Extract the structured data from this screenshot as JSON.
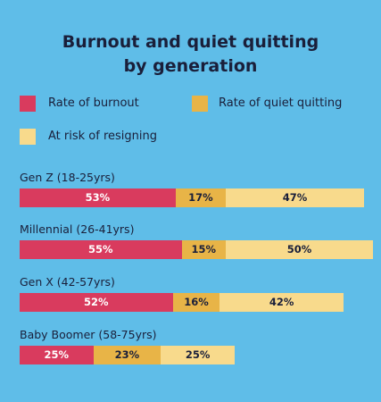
{
  "chart_data": {
    "type": "bar",
    "orientation": "horizontal",
    "stacked": true,
    "title": "Burnout and quiet quitting by generation",
    "title_lines": [
      "Burnout and quiet quitting",
      "by generation"
    ],
    "categories": [
      "Gen Z (18-25yrs)",
      "Millennial (26-41yrs)",
      "Gen X (42-57yrs)",
      "Baby Boomer (58-75yrs)"
    ],
    "series": [
      {
        "name": "Rate of burnout",
        "values": [
          53,
          55,
          52,
          25
        ],
        "color": "#d93b5e",
        "text_color": "#ffffff"
      },
      {
        "name": "Rate of quiet quitting",
        "values": [
          17,
          15,
          16,
          23
        ],
        "color": "#e8b447",
        "text_color": "#1a1f3a"
      },
      {
        "name": "At risk of resigning",
        "values": [
          47,
          50,
          42,
          25
        ],
        "color": "#f8da8c",
        "text_color": "#1a1f3a"
      }
    ],
    "value_suffix": "%",
    "legend_position": "top",
    "grid": false
  }
}
